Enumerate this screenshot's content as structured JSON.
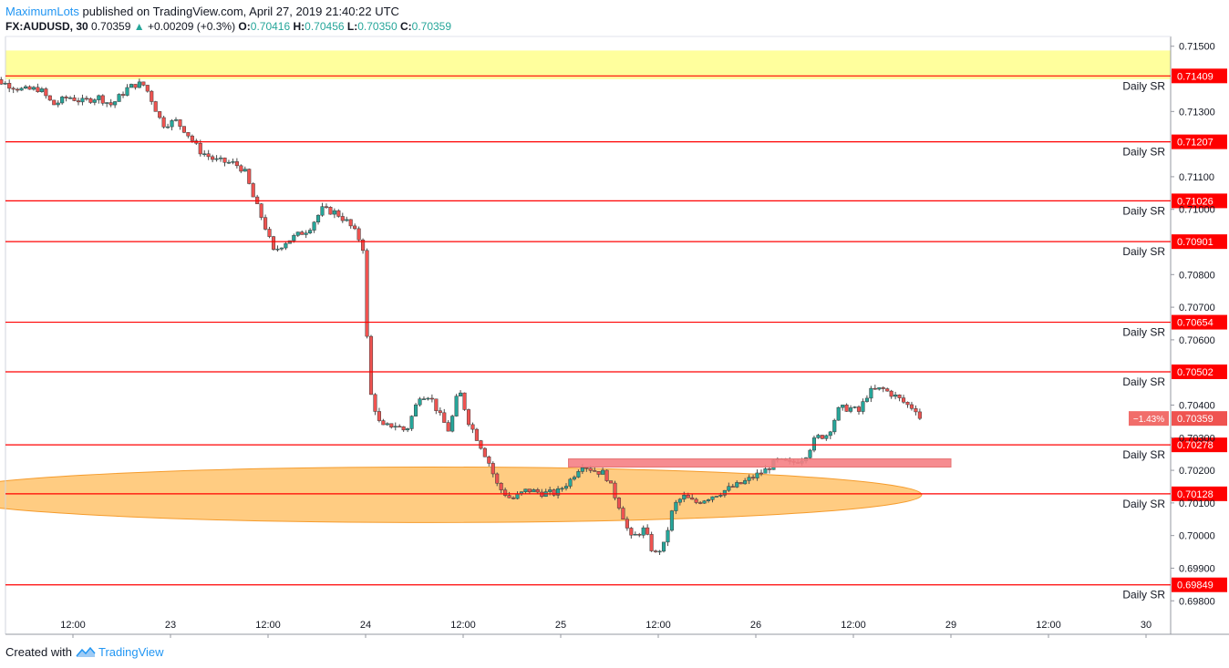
{
  "header": {
    "author": "MaximumLots",
    "published_text": "published on TradingView.com, April 27, 2019 21:40:22 UTC",
    "symbol": "FX:AUDUSD, 30",
    "last_price": "0.70359",
    "change_arrow": "▲",
    "change": "+0.00209 (+0.3%)",
    "open_label": "O:",
    "open": "0.70416",
    "high_label": "H:",
    "high": "0.70456",
    "low_label": "L:",
    "low": "0.70350",
    "close_label": "C:",
    "close": "0.70359"
  },
  "footer": {
    "created_with": "Created with",
    "brand": "TradingView"
  },
  "colors": {
    "up": "#26a69a",
    "down": "#ef5350",
    "sr_line": "#ff0000",
    "yellow_zone": "#ffff8c",
    "orange_zone": "#ffb74d",
    "pink_box": "#f57f84",
    "price_tag": "#ef5350"
  },
  "chart_data": {
    "type": "candlestick",
    "symbol": "FX:AUDUSD",
    "timeframe": "30",
    "ylim": [
      0.6977,
      0.7153
    ],
    "y_ticks": [
      "0.71500",
      "0.71300",
      "0.71100",
      "0.71000",
      "0.70800",
      "0.70700",
      "0.70600",
      "0.70400",
      "0.70300",
      "0.70200",
      "0.70100",
      "0.70000",
      "0.69900",
      "0.69800"
    ],
    "x_ticks": [
      {
        "label": "12:00",
        "pos": 0.5
      },
      {
        "label": "23",
        "pos": 1.0
      },
      {
        "label": "12:00",
        "pos": 1.5
      },
      {
        "label": "24",
        "pos": 2.0
      },
      {
        "label": "12:00",
        "pos": 2.5
      },
      {
        "label": "25",
        "pos": 3.0
      },
      {
        "label": "12:00",
        "pos": 3.5
      },
      {
        "label": "26",
        "pos": 4.0
      },
      {
        "label": "12:00",
        "pos": 4.5
      },
      {
        "label": "29",
        "pos": 5.0
      },
      {
        "label": "12:00",
        "pos": 5.5
      },
      {
        "label": "30",
        "pos": 6.0
      }
    ],
    "sr_levels": [
      {
        "price": 0.71409,
        "label": "0.71409",
        "name": "Daily SR"
      },
      {
        "price": 0.71207,
        "label": "0.71207",
        "name": "Daily SR"
      },
      {
        "price": 0.71026,
        "label": "0.71026",
        "name": "Daily SR"
      },
      {
        "price": 0.70901,
        "label": "0.70901",
        "name": "Daily SR"
      },
      {
        "price": 0.70654,
        "label": "0.70654",
        "name": "Daily SR"
      },
      {
        "price": 0.70502,
        "label": "0.70502",
        "name": "Daily SR"
      },
      {
        "price": 0.70278,
        "label": "0.70278",
        "name": "Daily SR"
      },
      {
        "price": 0.70128,
        "label": "0.70128",
        "name": "Daily SR"
      },
      {
        "price": 0.69849,
        "label": "0.69849",
        "name": "Daily SR"
      }
    ],
    "current_price": {
      "price": 0.70359,
      "label": "0.70359",
      "change_label": "−1.43%"
    },
    "zones": {
      "yellow": {
        "from": 0.71399,
        "to": 0.71487
      },
      "pink": {
        "x_from": 3.04,
        "x_to": 5.0,
        "from": 0.7021,
        "to": 0.70235
      },
      "orange": {
        "x_from": 0.0,
        "x_to": 4.85,
        "center": 0.70125,
        "half_height": 0.00085
      }
    },
    "close_path": [
      [
        0.0,
        0.71365
      ],
      [
        0.08,
        0.71395
      ],
      [
        0.15,
        0.7138
      ],
      [
        0.22,
        0.71365
      ],
      [
        0.3,
        0.7137
      ],
      [
        0.37,
        0.7132
      ],
      [
        0.45,
        0.71345
      ],
      [
        0.52,
        0.7133
      ],
      [
        0.6,
        0.71345
      ],
      [
        0.67,
        0.7132
      ],
      [
        0.75,
        0.7137
      ],
      [
        0.8,
        0.71385
      ],
      [
        0.84,
        0.7138
      ],
      [
        0.88,
        0.7133
      ],
      [
        0.93,
        0.7126
      ],
      [
        1.0,
        0.7127
      ],
      [
        1.05,
        0.7124
      ],
      [
        1.12,
        0.7118
      ],
      [
        1.2,
        0.7115
      ],
      [
        1.3,
        0.7114
      ],
      [
        1.35,
        0.7112
      ],
      [
        1.4,
        0.7103
      ],
      [
        1.45,
        0.7096
      ],
      [
        1.5,
        0.7087
      ],
      [
        1.56,
        0.709
      ],
      [
        1.62,
        0.7092
      ],
      [
        1.68,
        0.7094
      ],
      [
        1.75,
        0.71
      ],
      [
        1.82,
        0.7099
      ],
      [
        1.88,
        0.7096
      ],
      [
        1.93,
        0.7092
      ],
      [
        1.96,
        0.7088
      ],
      [
        1.99,
        0.7045
      ],
      [
        2.05,
        0.7033
      ],
      [
        2.12,
        0.7034
      ],
      [
        2.18,
        0.7032
      ],
      [
        2.25,
        0.7043
      ],
      [
        2.3,
        0.7043
      ],
      [
        2.35,
        0.7037
      ],
      [
        2.4,
        0.7032
      ],
      [
        2.45,
        0.7045
      ],
      [
        2.5,
        0.7035
      ],
      [
        2.55,
        0.7029
      ],
      [
        2.6,
        0.7023
      ],
      [
        2.65,
        0.7015
      ],
      [
        2.72,
        0.7011
      ],
      [
        2.8,
        0.7014
      ],
      [
        2.88,
        0.7013
      ],
      [
        2.95,
        0.7013
      ],
      [
        3.02,
        0.7017
      ],
      [
        3.08,
        0.7022
      ],
      [
        3.14,
        0.702
      ],
      [
        3.2,
        0.7019
      ],
      [
        3.28,
        0.7008
      ],
      [
        3.33,
        0.6999
      ],
      [
        3.4,
        0.7002
      ],
      [
        3.45,
        0.6994
      ],
      [
        3.5,
        0.6997
      ],
      [
        3.55,
        0.7009
      ],
      [
        3.6,
        0.7012
      ],
      [
        3.66,
        0.701
      ],
      [
        3.74,
        0.7012
      ],
      [
        3.82,
        0.7014
      ],
      [
        3.9,
        0.7016
      ],
      [
        3.96,
        0.7018
      ],
      [
        4.02,
        0.702
      ],
      [
        4.08,
        0.7023
      ],
      [
        4.15,
        0.7022
      ],
      [
        4.22,
        0.7024
      ],
      [
        4.28,
        0.703
      ],
      [
        4.34,
        0.7031
      ],
      [
        4.4,
        0.7039
      ],
      [
        4.46,
        0.7039
      ],
      [
        4.5,
        0.7038
      ],
      [
        4.55,
        0.7044
      ],
      [
        4.62,
        0.7045
      ],
      [
        4.68,
        0.7043
      ],
      [
        4.75,
        0.704
      ],
      [
        4.82,
        0.7038
      ]
    ]
  }
}
